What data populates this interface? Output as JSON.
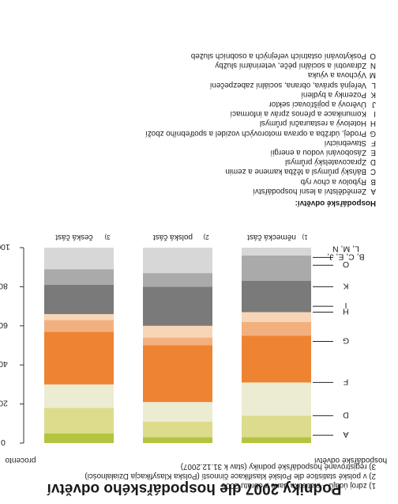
{
  "title": "Podniky 2007 dle hospodářského odvětví",
  "footnotes": [
    "1) zdroj údajů – statistika dané z obratu 2006",
    "2) v polské statistice dle Polské klasifikace činností (Polska Klasyfikacja Działalności)",
    "3) registrované hospodářské podniky (stav k 31.12.2007)"
  ],
  "sector_legend": {
    "heading": "Hospodářské odvětví:",
    "items": [
      {
        "code": "A",
        "name": "Zemědělství a lesní hospodářství"
      },
      {
        "code": "B",
        "name": "Rybolov a chov ryb"
      },
      {
        "code": "C",
        "name": "Báňský průmysl a těžba kamene a zemin"
      },
      {
        "code": "D",
        "name": "Zpracovatelský průmysl"
      },
      {
        "code": "E",
        "name": "Zásobování vodou a energií"
      },
      {
        "code": "F",
        "name": "Stavebnictví"
      },
      {
        "code": "G",
        "name": "Prodej, údržba a oprava motorových vozidel a spotřebního zboží"
      },
      {
        "code": "H",
        "name": "Hotelový a restaurační průmysl"
      },
      {
        "code": "I",
        "name": "Komunikace a přenos zpráv a informací"
      },
      {
        "code": "J",
        "name": "Úvěrový a pojišťovací sektor"
      },
      {
        "code": "K",
        "name": "Pozemky a bydlení"
      },
      {
        "code": "L",
        "name": "Veřejná správa, obrana, sociální zabezpečení"
      },
      {
        "code": "M",
        "name": "Výchova a výuka"
      },
      {
        "code": "N",
        "name": "Zdravotní a sociální péče, veterinární služby"
      },
      {
        "code": "O",
        "name": "Poskytování ostatních veřejných a osobních služeb"
      }
    ]
  },
  "chart_data": {
    "type": "bar",
    "stacked": true,
    "orientation": "vertical",
    "ylabel": "procento",
    "xlabel": "hospodářské odvětví",
    "ylim": [
      0,
      100
    ],
    "yticks": [
      0,
      20,
      40,
      60,
      80,
      100
    ],
    "grid": false,
    "categories": [
      "německá část",
      "polská část",
      "česká část"
    ],
    "category_notes": [
      "1)",
      "2)",
      "3)"
    ],
    "series": [
      {
        "name": "A",
        "color": "#b5c440",
        "values": [
          3,
          3,
          5
        ]
      },
      {
        "name": "D",
        "color": "#dcdc8c",
        "values": [
          11,
          8,
          13
        ]
      },
      {
        "name": "F",
        "color": "#ececd3",
        "values": [
          17,
          10,
          12
        ]
      },
      {
        "name": "G",
        "color": "#ee8432",
        "values": [
          24,
          29,
          27
        ]
      },
      {
        "name": "H",
        "color": "#f3b07f",
        "values": [
          7,
          4,
          6
        ]
      },
      {
        "name": "I",
        "color": "#f6d6b6",
        "values": [
          5,
          6,
          3
        ]
      },
      {
        "name": "K",
        "color": "#7a7a7a",
        "values": [
          16,
          20,
          15
        ]
      },
      {
        "name": "O",
        "color": "#aaaaaa",
        "values": [
          13,
          7,
          8
        ]
      },
      {
        "name": "B, C, E, J, L, M, N",
        "color": "#d7d7d7",
        "values": [
          4,
          13,
          11
        ]
      }
    ],
    "legend_position": "right",
    "legend_labels": [
      "A",
      "D",
      "F",
      "G",
      "H",
      "I",
      "K",
      "O",
      "B, C, E, J,",
      "L, M, N"
    ]
  }
}
